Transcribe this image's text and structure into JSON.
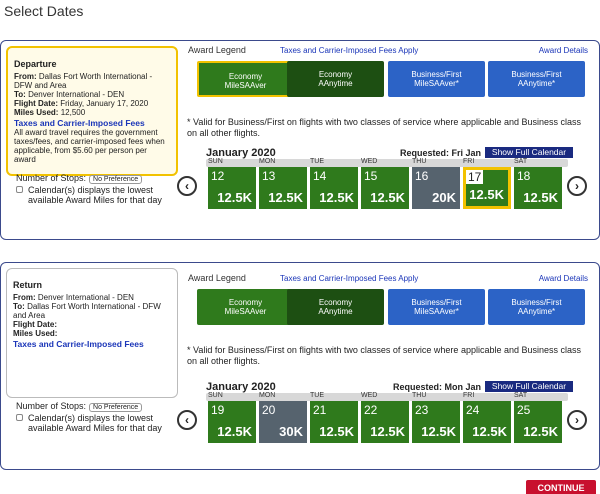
{
  "title": "Select Dates",
  "panels": [
    {
      "info": {
        "heading": "Departure",
        "from_label": "From:",
        "from": "Dallas Fort Worth International - DFW and Area",
        "to_label": "To:",
        "to": "Denver International - DEN",
        "date_label": "Flight Date:",
        "date": "Friday, January 17, 2020",
        "miles_label": "Miles Used:",
        "miles": "12,500",
        "fees_link": "Taxes and Carrier-Imposed Fees",
        "fees_text": "All award travel requires the government taxes/fees, and carrier-imposed fees when applicable, from $5.60 per person per award"
      },
      "stops_label": "Number of Stops:",
      "stops_option": "No Preference",
      "calendar_note": "Calendar(s) displays the lowest available Award Miles for that day",
      "legend_title": "Award Legend",
      "fees_apply": "Taxes and Carrier-Imposed Fees Apply",
      "award_details": "Award Details",
      "legend": [
        {
          "line1": "Economy",
          "line2": "MileSAAver",
          "color": "#2f7a1c"
        },
        {
          "line1": "Economy",
          "line2": "AAnytime",
          "color": "#1d4f12"
        },
        {
          "line1": "Business/First",
          "line2": "MileSAAver*",
          "color": "#2c63c6"
        },
        {
          "line1": "Business/First",
          "line2": "AAnytime*",
          "color": "#2c63c6"
        }
      ],
      "note": "* Valid for Business/First on flights with two classes of service where applicable and Business class on all other flights.",
      "month": "January 2020",
      "requested": "Requested: Fri Jan 17",
      "show_full": "Show Full Calendar",
      "weekdays": [
        "SUN",
        "MON",
        "TUE",
        "WED",
        "THU",
        "FRI",
        "SAT"
      ],
      "days": [
        {
          "day": 12,
          "miles": "12.5K",
          "color": "#2f7a1c"
        },
        {
          "day": 13,
          "miles": "12.5K",
          "color": "#2f7a1c"
        },
        {
          "day": 14,
          "miles": "12.5K",
          "color": "#2f7a1c"
        },
        {
          "day": 15,
          "miles": "12.5K",
          "color": "#2f7a1c"
        },
        {
          "day": 16,
          "miles": "20K",
          "color": "#56636e"
        },
        {
          "day": 17,
          "miles": "12.5K",
          "color": "#2f7a1c",
          "selected": true
        },
        {
          "day": 18,
          "miles": "12.5K",
          "color": "#2f7a1c"
        }
      ]
    },
    {
      "info": {
        "heading": "Return",
        "from_label": "From:",
        "from": "Denver International - DEN",
        "to_label": "To:",
        "to": "Dallas Fort Worth International - DFW and Area",
        "date_label": "Flight Date:",
        "miles_label": "Miles Used:",
        "fees_link": "Taxes and Carrier-Imposed Fees"
      },
      "stops_label": "Number of Stops:",
      "stops_option": "No Preference",
      "calendar_note": "Calendar(s) displays the lowest available Award Miles for that day",
      "legend_title": "Award Legend",
      "fees_apply": "Taxes and Carrier-Imposed Fees Apply",
      "award_details": "Award Details",
      "legend": [
        {
          "line1": "Economy",
          "line2": "MileSAAver",
          "color": "#2f7a1c"
        },
        {
          "line1": "Economy",
          "line2": "AAnytime",
          "color": "#1d4f12"
        },
        {
          "line1": "Business/First",
          "line2": "MileSAAver*",
          "color": "#2c63c6"
        },
        {
          "line1": "Business/First",
          "line2": "AAnytime*",
          "color": "#2c63c6"
        }
      ],
      "note": "* Valid for Business/First on flights with two classes of service where applicable and Business class on all other flights.",
      "month": "January 2020",
      "requested": "Requested: Mon Jan 20",
      "show_full": "Show Full Calendar",
      "weekdays": [
        "SUN",
        "MON",
        "TUE",
        "WED",
        "THU",
        "FRI",
        "SAT"
      ],
      "days": [
        {
          "day": 19,
          "miles": "12.5K",
          "color": "#2f7a1c"
        },
        {
          "day": 20,
          "miles": "30K",
          "color": "#56636e"
        },
        {
          "day": 21,
          "miles": "12.5K",
          "color": "#2f7a1c"
        },
        {
          "day": 22,
          "miles": "12.5K",
          "color": "#2f7a1c"
        },
        {
          "day": 23,
          "miles": "12.5K",
          "color": "#2f7a1c"
        },
        {
          "day": 24,
          "miles": "12.5K",
          "color": "#2f7a1c"
        },
        {
          "day": 25,
          "miles": "12.5K",
          "color": "#2f7a1c"
        }
      ]
    }
  ],
  "continue": "CONTINUE"
}
